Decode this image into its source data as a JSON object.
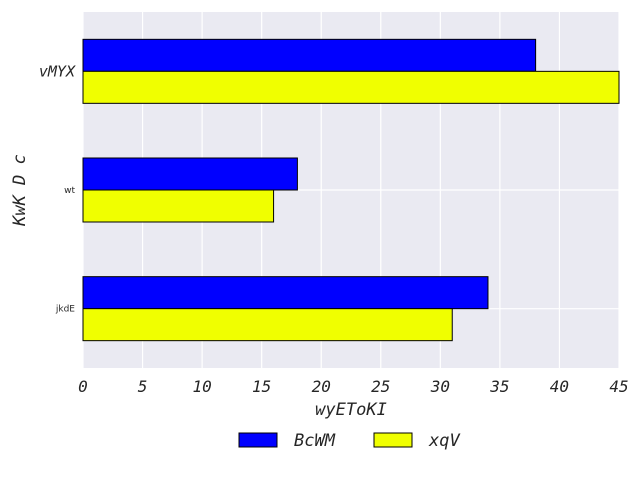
{
  "chart_data": {
    "type": "bar",
    "orientation": "horizontal",
    "title": "",
    "xlabel": "wyEToKI",
    "ylabel": "KwK D c",
    "categories": [
      "vMYX",
      "wt",
      "jkdE"
    ],
    "series": [
      {
        "name": "BcWM",
        "color": "#0000ff",
        "values": [
          38,
          18,
          34
        ]
      },
      {
        "name": "xqV",
        "color": "#f0ff00",
        "values": [
          45,
          16,
          31
        ]
      }
    ],
    "xlim": [
      0,
      45
    ],
    "xticks": [
      "0",
      "5",
      "10",
      "15",
      "20",
      "25",
      "30",
      "35",
      "40",
      "45"
    ],
    "grid": true,
    "legend_position": "bottom-center",
    "background_color": "#eaeaf2"
  }
}
